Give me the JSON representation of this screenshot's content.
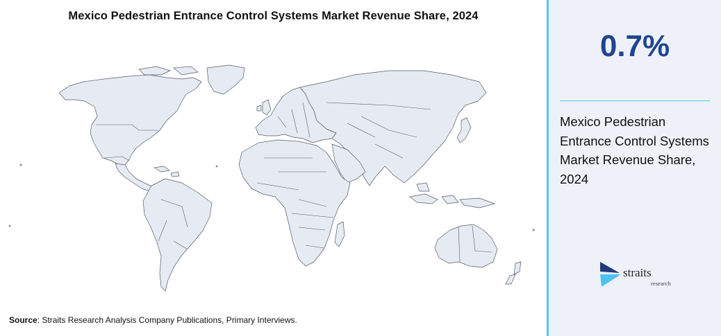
{
  "title": "Mexico Pedestrian Entrance Control Systems Market Revenue Share, 2024",
  "source": {
    "label": "Source",
    "text": ": Straits Research Analysis Company Publications, Primary Interviews."
  },
  "stat": {
    "value": "0.7%",
    "label": "Mexico Pedestrian Entrance Control Systems Market Revenue Share, 2024"
  },
  "logo": {
    "word": "straits",
    "sub": "research"
  },
  "colors": {
    "accent": "#56c6ee",
    "value": "#1f4591",
    "land": "#e6eaf2",
    "panel": "#eef1f8"
  },
  "icons": [
    "world-map",
    "straits-logo-mark"
  ]
}
